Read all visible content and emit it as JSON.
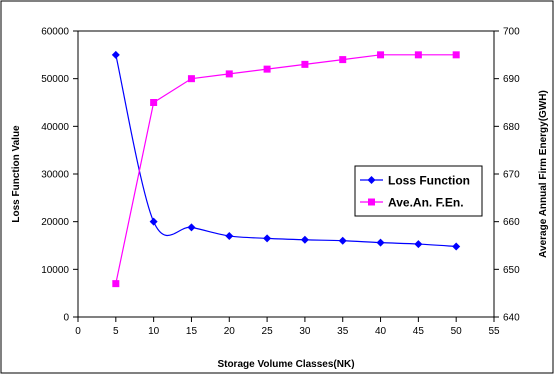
{
  "chart_data": {
    "type": "line",
    "xlabel": "Storage Volume Classes(NK)",
    "ylabel": "Loss Function Value",
    "y2label": "Average Annual Firm Energy(GWH)",
    "xlim": [
      0,
      55
    ],
    "ylim": [
      0,
      60000
    ],
    "y2lim": [
      640,
      700
    ],
    "x_ticks": [
      0,
      5,
      10,
      15,
      20,
      25,
      30,
      35,
      40,
      45,
      50,
      55
    ],
    "y_ticks": [
      0,
      10000,
      20000,
      30000,
      40000,
      50000,
      60000
    ],
    "y2_ticks": [
      640,
      650,
      660,
      670,
      680,
      690,
      700
    ],
    "grid": false,
    "legend_position": "right-center",
    "series": [
      {
        "name": "Loss Function",
        "axis": "left",
        "color": "#0000ff",
        "marker": "diamond",
        "smooth": true,
        "x": [
          5,
          10,
          15,
          20,
          25,
          30,
          35,
          40,
          45,
          50
        ],
        "values": [
          55000,
          20000,
          18800,
          17000,
          16500,
          16200,
          16000,
          15600,
          15300,
          14800
        ]
      },
      {
        "name": "Ave.An. F.En.",
        "axis": "right",
        "color": "#ff00ff",
        "marker": "square",
        "smooth": false,
        "x": [
          5,
          10,
          15,
          20,
          25,
          30,
          35,
          40,
          45,
          50
        ],
        "values": [
          647,
          685,
          690,
          691,
          692,
          693,
          694,
          695,
          695,
          695
        ]
      }
    ]
  }
}
